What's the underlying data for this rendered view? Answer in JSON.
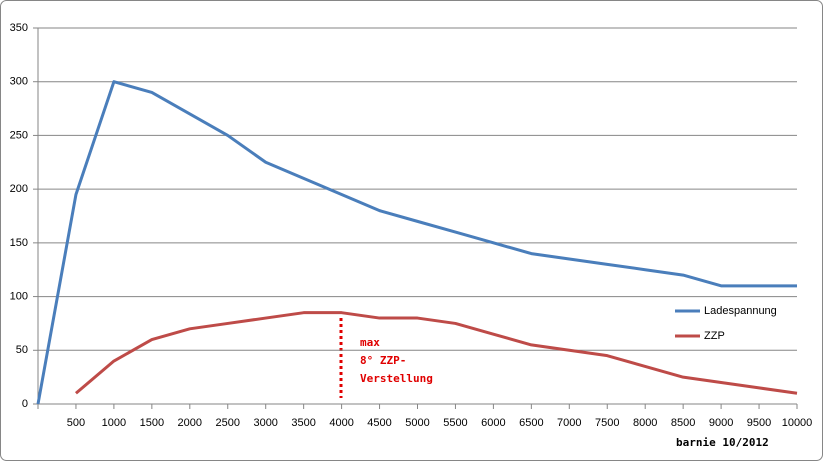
{
  "chart_data": {
    "type": "line",
    "categories": [
      null,
      "500",
      "1000",
      "1500",
      "2000",
      "2500",
      "3000",
      "3500",
      "4000",
      "4500",
      "5000",
      "5500",
      "6000",
      "6500",
      "7000",
      "7500",
      "8000",
      "8500",
      "9000",
      "9500",
      "10000"
    ],
    "series": [
      {
        "name": "Ladespannung",
        "color": "#4a7ebb",
        "values": [
          0,
          195,
          300,
          290,
          270,
          250,
          225,
          210,
          195,
          180,
          170,
          160,
          150,
          140,
          135,
          130,
          125,
          120,
          110,
          110,
          110
        ]
      },
      {
        "name": "ZZP",
        "color": "#be4b48",
        "values": [
          null,
          10,
          40,
          60,
          70,
          75,
          80,
          85,
          85,
          80,
          80,
          75,
          65,
          55,
          50,
          45,
          35,
          25,
          20,
          15,
          10
        ]
      }
    ],
    "ylim": [
      0,
      350
    ],
    "yticks": [
      0,
      50,
      100,
      150,
      200,
      250,
      300,
      350
    ],
    "grid": true,
    "legend": "right",
    "annotations": [
      "max",
      "8° ZZP-",
      "Verstellung"
    ],
    "footer": "barnie 10/2012"
  }
}
